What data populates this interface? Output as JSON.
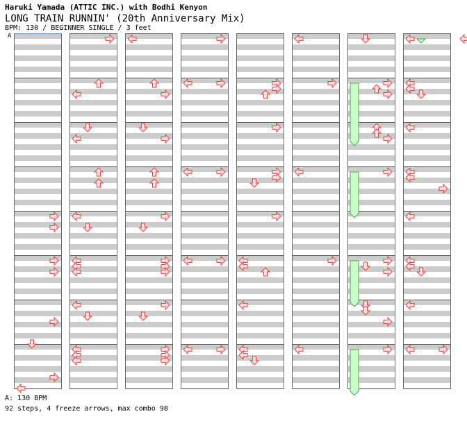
{
  "header": {
    "artist": "Haruki Yamada (ATTIC INC.) with Bodhi Kenyon",
    "title": "LONG TRAIN RUNNIN' (20th Anniversary Mix)",
    "meta": "BPM: 130 / BEGINNER SINGLE / 3 feet"
  },
  "marker_label": "A",
  "footer": {
    "bpm_line": "A: 130 BPM",
    "stats": "92 steps, 4 freeze arrows, max combo 98"
  },
  "colors": {
    "band": "#cccccc",
    "arrow_fill": "#ffdddd",
    "arrow_stroke": "#dd4444",
    "freeze_fill": "#ccffcc",
    "freeze_stroke": "#44aa44",
    "marker_line": "#6699cc"
  },
  "chart_data": {
    "type": "step-chart",
    "columns": 8,
    "measures_per_column": 8,
    "rows_per_measure": 8,
    "legend": {
      "L": "left-arrow",
      "D": "down-arrow",
      "U": "up-arrow",
      "R": "right-arrow"
    },
    "arrows": [
      [
        0,
        7,
        5,
        "R"
      ],
      [
        0,
        7,
        7,
        "L"
      ],
      [
        0,
        6,
        3,
        "R"
      ],
      [
        0,
        6,
        7,
        "D"
      ],
      [
        0,
        5,
        0,
        "R"
      ],
      [
        0,
        5,
        2,
        "R"
      ],
      [
        0,
        4,
        0,
        "R"
      ],
      [
        0,
        4,
        2,
        "R"
      ],
      [
        1,
        0,
        0,
        "R"
      ],
      [
        1,
        1,
        0,
        "U"
      ],
      [
        1,
        1,
        2,
        "L"
      ],
      [
        1,
        2,
        0,
        "D"
      ],
      [
        1,
        2,
        2,
        "L"
      ],
      [
        1,
        3,
        0,
        "U"
      ],
      [
        1,
        3,
        2,
        "U"
      ],
      [
        1,
        4,
        0,
        "L"
      ],
      [
        1,
        4,
        2,
        "D"
      ],
      [
        1,
        5,
        0,
        "L"
      ],
      [
        1,
        5,
        1,
        "L"
      ],
      [
        1,
        5,
        2,
        "L"
      ],
      [
        1,
        6,
        0,
        "L"
      ],
      [
        1,
        6,
        2,
        "D"
      ],
      [
        1,
        7,
        0,
        "L"
      ],
      [
        1,
        7,
        1,
        "L"
      ],
      [
        1,
        7,
        2,
        "L"
      ],
      [
        2,
        0,
        0,
        "L"
      ],
      [
        2,
        1,
        0,
        "U"
      ],
      [
        2,
        1,
        2,
        "R"
      ],
      [
        2,
        2,
        0,
        "D"
      ],
      [
        2,
        2,
        2,
        "R"
      ],
      [
        2,
        3,
        0,
        "U"
      ],
      [
        2,
        3,
        2,
        "U"
      ],
      [
        2,
        4,
        0,
        "R"
      ],
      [
        2,
        4,
        2,
        "D"
      ],
      [
        2,
        5,
        0,
        "R"
      ],
      [
        2,
        5,
        1,
        "R"
      ],
      [
        2,
        5,
        2,
        "R"
      ],
      [
        2,
        6,
        0,
        "R"
      ],
      [
        2,
        6,
        2,
        "D"
      ],
      [
        2,
        7,
        0,
        "R"
      ],
      [
        2,
        7,
        1,
        "R"
      ],
      [
        2,
        7,
        2,
        "R"
      ],
      [
        3,
        0,
        0,
        "R"
      ],
      [
        3,
        1,
        0,
        "L"
      ],
      [
        3,
        1,
        0,
        "R"
      ],
      [
        3,
        3,
        0,
        "L"
      ],
      [
        3,
        3,
        0,
        "R"
      ],
      [
        3,
        5,
        0,
        "L"
      ],
      [
        3,
        5,
        0,
        "R"
      ],
      [
        3,
        7,
        0,
        "L"
      ],
      [
        3,
        7,
        0,
        "R"
      ],
      [
        4,
        1,
        0,
        "R"
      ],
      [
        4,
        1,
        1,
        "R"
      ],
      [
        4,
        1,
        2,
        "U"
      ],
      [
        4,
        2,
        0,
        "R"
      ],
      [
        4,
        3,
        0,
        "R"
      ],
      [
        4,
        3,
        1,
        "R"
      ],
      [
        4,
        3,
        2,
        "D"
      ],
      [
        4,
        4,
        0,
        "R"
      ],
      [
        4,
        5,
        0,
        "L"
      ],
      [
        4,
        5,
        1,
        "L"
      ],
      [
        4,
        5,
        2,
        "U"
      ],
      [
        4,
        6,
        0,
        "L"
      ],
      [
        4,
        7,
        0,
        "L"
      ],
      [
        4,
        7,
        1,
        "L"
      ],
      [
        4,
        7,
        2,
        "D"
      ],
      [
        5,
        0,
        0,
        "L"
      ],
      [
        5,
        1,
        0,
        "R"
      ],
      [
        5,
        3,
        0,
        "L"
      ],
      [
        5,
        5,
        0,
        "R"
      ],
      [
        5,
        7,
        0,
        "L"
      ],
      [
        6,
        0,
        0,
        "D"
      ],
      [
        6,
        1,
        0,
        "R"
      ],
      [
        6,
        1,
        1,
        "U"
      ],
      [
        6,
        1,
        2,
        "R"
      ],
      [
        6,
        2,
        0,
        "U"
      ],
      [
        6,
        2,
        1,
        "U"
      ],
      [
        6,
        2,
        2,
        "R"
      ],
      [
        6,
        3,
        0,
        "R"
      ],
      [
        6,
        5,
        0,
        "R"
      ],
      [
        6,
        5,
        1,
        "D"
      ],
      [
        6,
        5,
        2,
        "R"
      ],
      [
        6,
        6,
        0,
        "D"
      ],
      [
        6,
        6,
        1,
        "D"
      ],
      [
        6,
        6,
        3,
        "R"
      ],
      [
        6,
        7,
        0,
        "R"
      ],
      [
        7,
        0,
        0,
        "L"
      ],
      [
        7,
        1,
        0,
        "L"
      ],
      [
        7,
        1,
        1,
        "L"
      ],
      [
        7,
        1,
        2,
        "D"
      ],
      [
        7,
        2,
        0,
        "L"
      ],
      [
        7,
        3,
        0,
        "L"
      ],
      [
        7,
        3,
        1,
        "L"
      ],
      [
        7,
        3,
        3,
        "R"
      ],
      [
        7,
        4,
        0,
        "L"
      ],
      [
        7,
        5,
        0,
        "L"
      ],
      [
        7,
        5,
        1,
        "L"
      ],
      [
        7,
        5,
        2,
        "D"
      ],
      [
        7,
        6,
        0,
        "L"
      ],
      [
        7,
        7,
        0,
        "L"
      ],
      [
        7,
        7,
        0,
        "R"
      ]
    ],
    "freezes": [
      [
        5,
        1,
        0,
        5,
        2,
        3
      ],
      [
        5,
        3,
        0,
        5,
        4,
        0
      ],
      [
        5,
        5,
        0,
        5,
        6,
        0
      ],
      [
        5,
        7,
        0,
        5,
        7,
        8
      ],
      [
        6,
        0,
        0,
        6,
        0,
        0
      ]
    ]
  }
}
